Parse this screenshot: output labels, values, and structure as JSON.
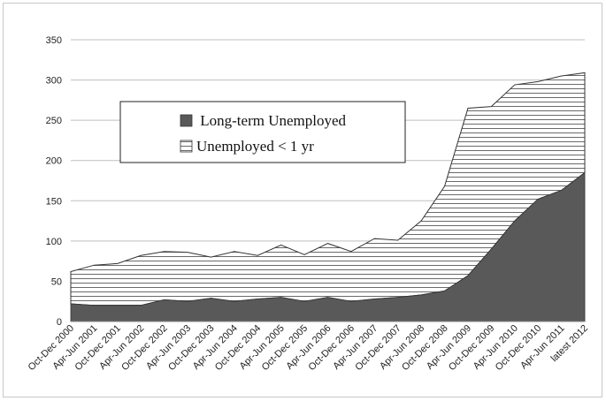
{
  "chart_data": {
    "type": "area",
    "stacked": true,
    "categories": [
      "Oct-Dec 2000",
      "Apr-Jun 2001",
      "Oct-Dec 2001",
      "Apr-Jun 2002",
      "Oct-Dec 2002",
      "Apr-Jun 2003",
      "Oct-Dec 2003",
      "Apr-Jun 2004",
      "Oct-Dec 2004",
      "Apr-Jun 2005",
      "Oct-Dec 2005",
      "Apr-Jun 2006",
      "Oct-Dec 2006",
      "Apr-Jun 2007",
      "Oct-Dec 2007",
      "Apr-Jun 2008",
      "Oct-Dec 2008",
      "Apr-Jun 2009",
      "Oct-Dec 2009",
      "Apr-Jun 2010",
      "Oct-Dec 2010",
      "Apr-Jun 2011",
      "latest 2012"
    ],
    "series": [
      {
        "name": "Long-term Unemployed",
        "values": [
          22,
          20,
          20,
          20,
          27,
          25,
          29,
          25,
          28,
          30,
          25,
          30,
          25,
          28,
          30,
          33,
          38,
          57,
          90,
          125,
          152,
          163,
          185
        ],
        "color": "#595959",
        "pattern": "solid"
      },
      {
        "name": "Unemployed < 1 yr",
        "values": [
          40,
          50,
          52,
          62,
          60,
          61,
          51,
          62,
          54,
          65,
          58,
          67,
          62,
          75,
          71,
          92,
          130,
          208,
          177,
          169,
          146,
          142,
          124
        ],
        "color": "#ffffff",
        "pattern": "horizontal-lines"
      }
    ],
    "totals": [
      62,
      70,
      72,
      82,
      87,
      86,
      80,
      87,
      82,
      95,
      83,
      97,
      87,
      103,
      101,
      125,
      168,
      265,
      267,
      294,
      298,
      305,
      309
    ],
    "ylim": [
      0,
      350
    ],
    "yticks": [
      "0",
      "50",
      "100",
      "150",
      "200",
      "250",
      "300",
      "350"
    ],
    "grid": "horizontal",
    "legend": "inside-top-left",
    "title": "",
    "xlabel": "",
    "ylabel": ""
  }
}
